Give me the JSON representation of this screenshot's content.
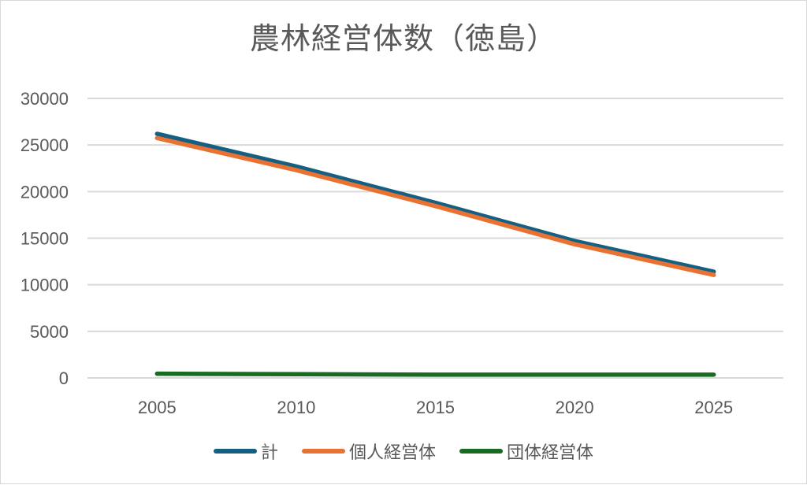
{
  "window": {
    "background": "#FFFFFF",
    "border_color": "#D9D9D9"
  },
  "chart_data": {
    "type": "line",
    "title": "農林経営体数（徳島）",
    "categories": [
      "2005",
      "2010",
      "2015",
      "2020",
      "2025"
    ],
    "series": [
      {
        "name": "計",
        "color": "#156082",
        "values": [
          26200,
          22700,
          18800,
          14700,
          11400
        ]
      },
      {
        "name": "個人経営体",
        "color": "#E97132",
        "values": [
          25750,
          22300,
          18450,
          14350,
          11050
        ]
      },
      {
        "name": "団体経営体",
        "color": "#196B24",
        "values": [
          450,
          400,
          350,
          350,
          350
        ]
      }
    ],
    "xlabel": "",
    "ylabel": "",
    "ylim": [
      0,
      30000
    ],
    "yticks": [
      0,
      5000,
      10000,
      15000,
      20000,
      25000,
      30000
    ],
    "grid": true,
    "legend_position": "bottom",
    "title_color": "#595959",
    "axis_text_color": "#595959",
    "gridline_color": "#D9D9D9"
  }
}
